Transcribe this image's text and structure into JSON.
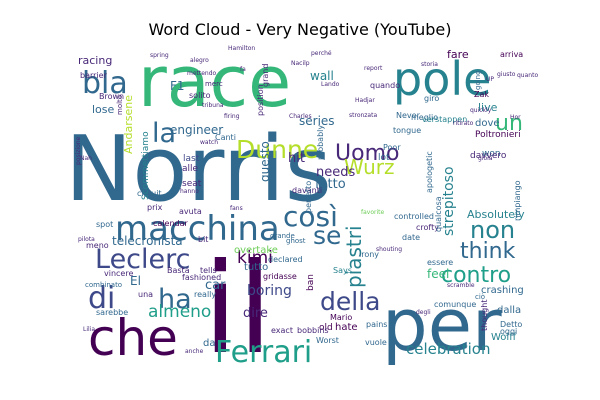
{
  "chart_data": {
    "type": "wordcloud",
    "title": "Word Cloud - Very Negative (YouTube)",
    "colormap": "viridis",
    "background": "#ffffff",
    "words": [
      {
        "text": "Norris",
        "weight": 1.0,
        "color": "#31688e"
      },
      {
        "text": "il",
        "weight": 0.95,
        "color": "#440154"
      },
      {
        "text": "race",
        "weight": 0.82,
        "color": "#35b779"
      },
      {
        "text": "per",
        "weight": 0.8,
        "color": "#31688e"
      },
      {
        "text": "che",
        "weight": 0.62,
        "color": "#440154"
      },
      {
        "text": "pole",
        "weight": 0.52,
        "color": "#26828e"
      },
      {
        "text": "macchina",
        "weight": 0.44,
        "color": "#31688e"
      },
      {
        "text": "Ferrari",
        "weight": 0.4,
        "color": "#1f9e89"
      },
      {
        "text": "Leclerc",
        "weight": 0.36,
        "color": "#3e4989"
      },
      {
        "text": "bla",
        "weight": 0.34,
        "color": "#31688e"
      },
      {
        "text": "di",
        "weight": 0.34,
        "color": "#3e4989"
      },
      {
        "text": "la",
        "weight": 0.32,
        "color": "#31688e"
      },
      {
        "text": "così",
        "weight": 0.3,
        "color": "#31688e"
      },
      {
        "text": "Dunne",
        "weight": 0.3,
        "color": "#b5de2b"
      },
      {
        "text": "Uomo",
        "weight": 0.28,
        "color": "#482878"
      },
      {
        "text": "ha",
        "weight": 0.3,
        "color": "#31688e"
      },
      {
        "text": "della",
        "weight": 0.28,
        "color": "#3e4989"
      },
      {
        "text": "contro",
        "weight": 0.26,
        "color": "#1f9e89"
      },
      {
        "text": "se",
        "weight": 0.26,
        "color": "#31688e"
      },
      {
        "text": "non",
        "weight": 0.25,
        "color": "#26828e"
      },
      {
        "text": "think",
        "weight": 0.24,
        "color": "#31688e"
      },
      {
        "text": "un",
        "weight": 0.24,
        "color": "#35b779"
      },
      {
        "text": "Wurz",
        "weight": 0.24,
        "color": "#b5de2b"
      },
      {
        "text": "piastri",
        "weight": 0.22,
        "color": "#26828e"
      },
      {
        "text": "celebration",
        "weight": 0.2,
        "color": "#26828e"
      },
      {
        "text": "almeno",
        "weight": 0.2,
        "color": "#1f9e89"
      },
      {
        "text": "kimi",
        "weight": 0.2,
        "color": "#440154"
      },
      {
        "text": "telecronista",
        "weight": 0.17,
        "color": "#31688e"
      },
      {
        "text": "engineer",
        "weight": 0.15,
        "color": "#31688e"
      },
      {
        "text": "strepitoso",
        "weight": 0.15,
        "color": "#26828e"
      },
      {
        "text": "racing",
        "weight": 0.14,
        "color": "#482878"
      },
      {
        "text": "F1",
        "weight": 0.14,
        "color": "#31688e"
      },
      {
        "text": "boring",
        "weight": 0.15,
        "color": "#3e4989"
      },
      {
        "text": "fatto",
        "weight": 0.15,
        "color": "#31688e"
      },
      {
        "text": "needs",
        "weight": 0.15,
        "color": "#482878"
      },
      {
        "text": "hit",
        "weight": 0.15,
        "color": "#482878"
      },
      {
        "text": "dire",
        "weight": 0.14,
        "color": "#482878"
      },
      {
        "text": "fare",
        "weight": 0.14,
        "color": "#440154"
      },
      {
        "text": "series",
        "weight": 0.13,
        "color": "#31688e"
      },
      {
        "text": "wall",
        "weight": 0.13,
        "color": "#26828e"
      },
      {
        "text": "car",
        "weight": 0.13,
        "color": "#31688e"
      },
      {
        "text": "live",
        "weight": 0.12,
        "color": "#26828e"
      },
      {
        "text": "Absolutely",
        "weight": 0.12,
        "color": "#26828e"
      },
      {
        "text": "feel",
        "weight": 0.12,
        "color": "#35b779"
      },
      {
        "text": "lose",
        "weight": 0.11,
        "color": "#31688e"
      },
      {
        "text": "questo",
        "weight": 0.12,
        "color": "#31688e"
      },
      {
        "text": "Poltronieri",
        "weight": 0.1,
        "color": "#440154"
      },
      {
        "text": "El",
        "weight": 0.12,
        "color": "#31688e"
      },
      {
        "text": "overtake",
        "weight": 0.1,
        "color": "#6ece58"
      },
      {
        "text": "tutto",
        "weight": 0.1,
        "color": "#31688e"
      },
      {
        "text": "crashing",
        "weight": 0.09,
        "color": "#31688e"
      },
      {
        "text": "Wolff",
        "weight": 0.09,
        "color": "#26828e"
      },
      {
        "text": "dalla",
        "weight": 0.09,
        "color": "#31688e"
      },
      {
        "text": "da",
        "weight": 0.09,
        "color": "#31688e"
      },
      {
        "text": "hate",
        "weight": 0.09,
        "color": "#440154"
      },
      {
        "text": "old",
        "weight": 0.08,
        "color": "#440154"
      },
      {
        "text": "ban",
        "weight": 0.08,
        "color": "#440154"
      },
      {
        "text": "dove",
        "weight": 0.08,
        "color": "#31688e"
      },
      {
        "text": "won",
        "weight": 0.08,
        "color": "#31688e"
      },
      {
        "text": "lot",
        "weight": 0.08,
        "color": "#31688e"
      },
      {
        "text": "date",
        "weight": 0.07,
        "color": "#31688e"
      },
      {
        "text": "alle",
        "weight": 0.07,
        "color": "#482878"
      },
      {
        "text": "seat",
        "weight": 0.07,
        "color": "#482878"
      },
      {
        "text": "last",
        "weight": 0.07,
        "color": "#3e4989"
      },
      {
        "text": "prix",
        "weight": 0.07,
        "color": "#482878"
      },
      {
        "text": "bit",
        "weight": 0.07,
        "color": "#482878"
      },
      {
        "text": "Says",
        "weight": 0.07,
        "color": "#26828e"
      },
      {
        "text": "Detto",
        "weight": 0.07,
        "color": "#31688e"
      },
      {
        "text": "davvero",
        "weight": 0.07,
        "color": "#482878"
      },
      {
        "text": "circuit",
        "weight": 0.06,
        "color": "#31688e"
      },
      {
        "text": "calendar",
        "weight": 0.06,
        "color": "#440154"
      },
      {
        "text": "exact",
        "weight": 0.06,
        "color": "#482878"
      },
      {
        "text": "bobbins",
        "weight": 0.06,
        "color": "#482878"
      },
      {
        "text": "Mario",
        "weight": 0.06,
        "color": "#440154"
      },
      {
        "text": "Never",
        "weight": 0.06,
        "color": "#31688e"
      },
      {
        "text": "quando",
        "weight": 0.06,
        "color": "#482878"
      },
      {
        "text": "giro",
        "weight": 0.06,
        "color": "#31688e"
      },
      {
        "text": "Zak",
        "weight": 0.06,
        "color": "#440154"
      },
      {
        "text": "position",
        "weight": 0.06,
        "color": "#482878"
      },
      {
        "text": "grand",
        "weight": 0.06,
        "color": "#482878"
      },
      {
        "text": "solito",
        "weight": 0.06,
        "color": "#482878"
      },
      {
        "text": "barrier",
        "weight": 0.06,
        "color": "#482878"
      },
      {
        "text": "Brown",
        "weight": 0.05,
        "color": "#482878"
      },
      {
        "text": "molto",
        "weight": 0.05,
        "color": "#482878"
      },
      {
        "text": "merc",
        "weight": 0.05,
        "color": "#482878"
      },
      {
        "text": "arriva",
        "weight": 0.05,
        "color": "#440154"
      },
      {
        "text": "going",
        "weight": 0.05,
        "color": "#31688e"
      },
      {
        "text": "controlled",
        "weight": 0.05,
        "color": "#31688e"
      },
      {
        "text": "declared",
        "weight": 0.05,
        "color": "#31688e"
      },
      {
        "text": "gridasse",
        "weight": 0.05,
        "color": "#440154"
      },
      {
        "text": "sarebbe",
        "weight": 0.05,
        "color": "#31688e"
      },
      {
        "text": "fashioned",
        "weight": 0.05,
        "color": "#482878"
      },
      {
        "text": "vincere",
        "weight": 0.05,
        "color": "#482878"
      },
      {
        "text": "Basta",
        "weight": 0.05,
        "color": "#482878"
      },
      {
        "text": "tells",
        "weight": 0.05,
        "color": "#482878"
      },
      {
        "text": "oggi",
        "weight": 0.05,
        "color": "#31688e"
      },
      {
        "text": "crofty",
        "weight": 0.05,
        "color": "#482878"
      },
      {
        "text": "essere",
        "weight": 0.05,
        "color": "#31688e"
      },
      {
        "text": "comunque",
        "weight": 0.05,
        "color": "#31688e"
      },
      {
        "text": "tongue",
        "weight": 0.05,
        "color": "#31688e"
      },
      {
        "text": "meglio",
        "weight": 0.05,
        "color": "#31688e"
      },
      {
        "text": "Canti",
        "weight": 0.05,
        "color": "#31688e"
      },
      {
        "text": "davanti",
        "weight": 0.05,
        "color": "#482878"
      },
      {
        "text": "avuta",
        "weight": 0.05,
        "color": "#482878"
      },
      {
        "text": "spot",
        "weight": 0.05,
        "color": "#31688e"
      },
      {
        "text": "meno",
        "weight": 0.05,
        "color": "#482878"
      },
      {
        "text": "Hamilton",
        "weight": 0.03,
        "color": "#482878"
      },
      {
        "text": "pains",
        "weight": 0.05,
        "color": "#31688e"
      },
      {
        "text": "vuole",
        "weight": 0.05,
        "color": "#31688e"
      },
      {
        "text": "una",
        "weight": 0.04,
        "color": "#482878"
      },
      {
        "text": "perfetto",
        "weight": 0.04,
        "color": "#31688e"
      },
      {
        "text": "Poor",
        "weight": 0.04,
        "color": "#31688e"
      },
      {
        "text": "irony",
        "weight": 0.04,
        "color": "#31688e"
      },
      {
        "text": "Worst",
        "weight": 0.04,
        "color": "#31688e"
      },
      {
        "text": "really",
        "weight": 0.04,
        "color": "#31688e"
      },
      {
        "text": "probably",
        "weight": 0.04,
        "color": "#31688e"
      },
      {
        "text": "verstappen",
        "weight": 0.04,
        "color": "#26828e"
      },
      {
        "text": "qualcosa",
        "weight": 0.04,
        "color": "#31688e"
      },
      {
        "text": "apologetic",
        "weight": 0.04,
        "color": "#31688e"
      },
      {
        "text": "rimpiango",
        "weight": 0.04,
        "color": "#31688e"
      },
      {
        "text": "thought",
        "weight": 0.04,
        "color": "#482878"
      },
      {
        "text": "ghost",
        "weight": 0.03,
        "color": "#31688e"
      },
      {
        "text": "Andarsene",
        "weight": 0.05,
        "color": "#b5de2b"
      },
      {
        "text": "Scommettiamo",
        "weight": 0.05,
        "color": "#26828e"
      },
      {
        "text": "favorite",
        "weight": 0.03,
        "color": "#6ece58"
      },
      {
        "text": "combinato",
        "weight": 0.03,
        "color": "#31688e"
      },
      {
        "text": "grande",
        "weight": 0.03,
        "color": "#31688e"
      },
      {
        "text": "ciò",
        "weight": 0.03,
        "color": "#31688e"
      },
      {
        "text": "shouting",
        "weight": 0.03,
        "color": "#482878"
      },
      {
        "text": "report",
        "weight": 0.03,
        "color": "#482878"
      },
      {
        "text": "Charles",
        "weight": 0.03,
        "color": "#482878"
      },
      {
        "text": "Hadjar",
        "weight": 0.03,
        "color": "#482878"
      },
      {
        "text": "Lando",
        "weight": 0.03,
        "color": "#482878"
      },
      {
        "text": "perché",
        "weight": 0.03,
        "color": "#482878"
      },
      {
        "text": "alegro",
        "weight": 0.03,
        "color": "#482878"
      },
      {
        "text": "Nacilp",
        "weight": 0.03,
        "color": "#482878"
      },
      {
        "text": "firing",
        "weight": 0.03,
        "color": "#482878"
      },
      {
        "text": "tribuna",
        "weight": 0.03,
        "color": "#482878"
      },
      {
        "text": "mettendo",
        "weight": 0.03,
        "color": "#482878"
      },
      {
        "text": "stronzata",
        "weight": 0.03,
        "color": "#482878"
      },
      {
        "text": "quickly",
        "weight": 0.03,
        "color": "#482878"
      },
      {
        "text": "pilota",
        "weight": 0.03,
        "color": "#482878"
      },
      {
        "text": "watch",
        "weight": 0.03,
        "color": "#482878"
      },
      {
        "text": "giusto",
        "weight": 0.03,
        "color": "#482878"
      },
      {
        "text": "posizione",
        "weight": 0.03,
        "color": "#482878"
      },
      {
        "text": "storia",
        "weight": 0.03,
        "color": "#482878"
      },
      {
        "text": "scramble",
        "weight": 0.03,
        "color": "#482878"
      },
      {
        "text": "hanno",
        "weight": 0.03,
        "color": "#482878"
      },
      {
        "text": "gioia",
        "weight": 0.03,
        "color": "#482878"
      },
      {
        "text": "ritirato",
        "weight": 0.03,
        "color": "#482878"
      },
      {
        "text": "UP",
        "weight": 0.03,
        "color": "#482878"
      },
      {
        "text": "Lilia",
        "weight": 0.03,
        "color": "#482878"
      },
      {
        "text": "Nah",
        "weight": 0.03,
        "color": "#482878"
      },
      {
        "text": "Hor",
        "weight": 0.03,
        "color": "#482878"
      },
      {
        "text": "spring",
        "weight": 0.03,
        "color": "#482878"
      },
      {
        "text": "anche",
        "weight": 0.03,
        "color": "#482878"
      },
      {
        "text": "fans",
        "weight": 0.03,
        "color": "#482878"
      },
      {
        "text": "quanto",
        "weight": 0.03,
        "color": "#482878"
      },
      {
        "text": "fa",
        "weight": 0.03,
        "color": "#482878"
      },
      {
        "text": "degli",
        "weight": 0.03,
        "color": "#482878"
      }
    ]
  }
}
